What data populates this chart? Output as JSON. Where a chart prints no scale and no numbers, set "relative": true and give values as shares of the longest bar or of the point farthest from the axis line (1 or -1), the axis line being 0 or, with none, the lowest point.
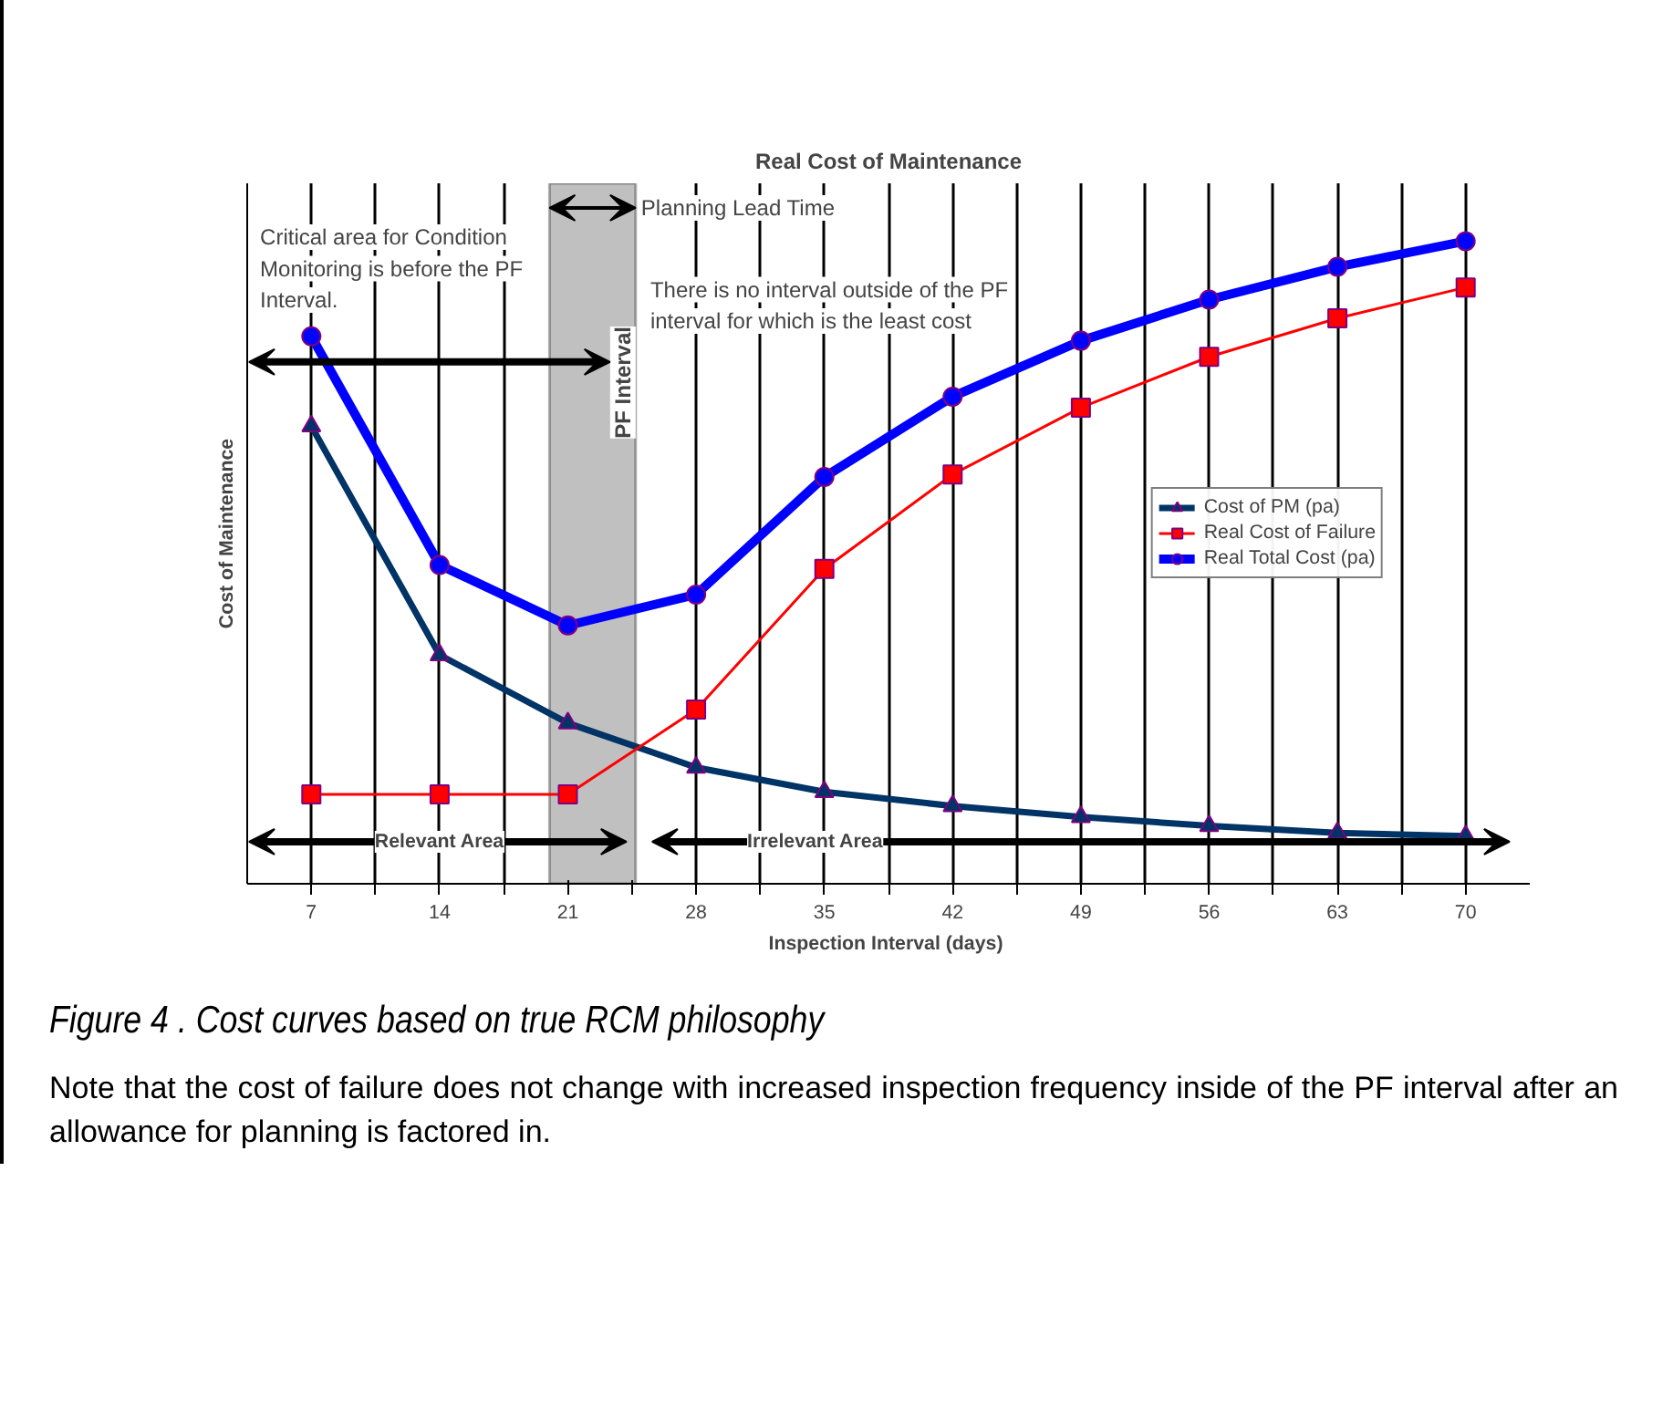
{
  "chart_data": {
    "type": "line",
    "title": "Real Cost of Maintenance",
    "xlabel": "Inspection Interval  (days)",
    "ylabel": "Cost of Maintenance",
    "relative": true,
    "x": [
      7,
      14,
      21,
      28,
      35,
      42,
      49,
      56,
      63,
      70
    ],
    "xlim": [
      3.5,
      73.5
    ],
    "xticks": [
      7,
      {
        "value": 10.5,
        "label": null
      },
      14,
      {
        "value": 17.5,
        "label": null
      },
      21,
      {
        "value": 24.5,
        "label": null
      },
      28,
      {
        "value": 31.5,
        "label": null
      },
      35,
      {
        "value": 38.5,
        "label": null
      },
      42,
      {
        "value": 45.5,
        "label": null
      },
      49,
      {
        "value": 52.5,
        "label": null
      },
      56,
      {
        "value": 59.5,
        "label": null
      },
      63,
      {
        "value": 66.5,
        "label": null
      },
      70
    ],
    "series": [
      {
        "name": "Cost of PM (pa)",
        "color": "#003366",
        "marker": "triangle",
        "values": [
          0.712,
          0.356,
          0.25,
          0.181,
          0.143,
          0.121,
          0.104,
          0.09,
          0.079,
          0.074
        ]
      },
      {
        "name": "Real Cost of Failure",
        "color": "#ff0000",
        "marker": "square",
        "values": [
          0.139,
          0.139,
          0.139,
          0.271,
          0.49,
          0.637,
          0.741,
          0.82,
          0.88,
          0.928
        ]
      },
      {
        "name": "Real Total Cost (pa)",
        "color": "#0000ff",
        "marker": "circle",
        "values": [
          0.852,
          0.496,
          0.402,
          0.45,
          0.633,
          0.758,
          0.845,
          0.909,
          0.96,
          1.0
        ]
      }
    ],
    "bands": [
      {
        "axis": "x",
        "from": 20,
        "to": 24.7,
        "label": "PF Interval",
        "color": "#c0c0c0"
      }
    ],
    "annotations": [
      "Planning Lead Time",
      "Critical area for Condition Monitoring is before the PF Interval.",
      "There is no interval outside of the PF interval for which is the least cost",
      "Relevant Area",
      "Irrelevant Area",
      "Figure 4 .  Cost curves based on true RCM philosophy",
      "Note that the cost of failure does not change with increased inspection frequency inside of the PF interval after an allowance for planning is factored in."
    ],
    "grid": "x",
    "legend": "right"
  }
}
